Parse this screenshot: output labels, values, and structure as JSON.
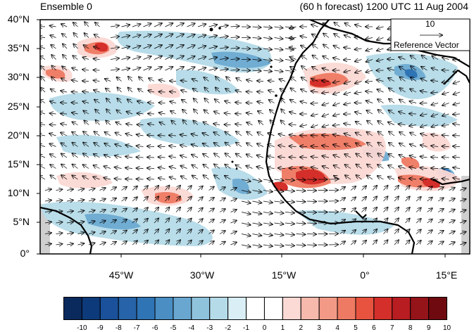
{
  "header": {
    "left_title": "Ensemble 0",
    "right_title": "(60 h forecast) 1200 UTC 11 Aug 2004"
  },
  "map": {
    "lat_labels": [
      "40°N",
      "35°N",
      "30°N",
      "25°N",
      "20°N",
      "15°N",
      "10°N",
      "5°N",
      "0°"
    ],
    "lon_labels": [
      "45°W",
      "30°W",
      "15°W",
      "0°",
      "15°E"
    ],
    "reference_vector": {
      "magnitude": "10",
      "label": "Reference Vector"
    }
  },
  "colorbar": {
    "labels": [
      "-10",
      "-9",
      "-8",
      "-7",
      "-6",
      "-5",
      "-4",
      "-3",
      "-2",
      "-1",
      "0",
      "1",
      "2",
      "3",
      "4",
      "5",
      "6",
      "7",
      "8",
      "9",
      "10"
    ],
    "colors": [
      "#0a2a5e",
      "#0d3a7a",
      "#1a519a",
      "#2663a8",
      "#2f74b5",
      "#4a8ec4",
      "#69a7d0",
      "#8fc3dc",
      "#b5dbe8",
      "#d9eef5",
      "#ffffff",
      "#ffffff",
      "#fbd9d4",
      "#f7b9ac",
      "#f39a86",
      "#ef7a63",
      "#e8533f",
      "#d42f2a",
      "#b81d22",
      "#94141a",
      "#6e0a10"
    ]
  }
}
